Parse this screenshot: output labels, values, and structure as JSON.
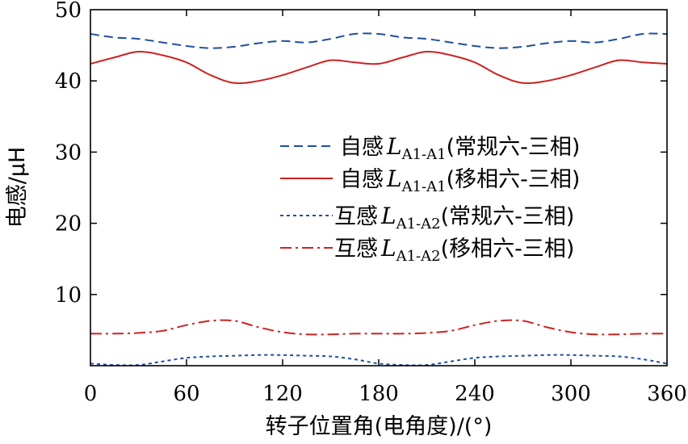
{
  "chart_data": {
    "type": "line",
    "title": "",
    "xlabel": "转子位置角(电角度)/(°)",
    "ylabel": "电感/μH",
    "xlim": [
      0,
      360
    ],
    "ylim": [
      0,
      50
    ],
    "xticks": [
      "0",
      "60",
      "120",
      "180",
      "240",
      "300",
      "360"
    ],
    "yticks": [
      "10",
      "20",
      "30",
      "40",
      "50"
    ],
    "legend_position": "center-right",
    "x": [
      0,
      15,
      30,
      45,
      60,
      75,
      90,
      105,
      120,
      135,
      150,
      165,
      180,
      195,
      210,
      225,
      240,
      255,
      270,
      285,
      300,
      315,
      330,
      345,
      360
    ],
    "series": [
      {
        "name": "自感L_A1-A1(常规六-三相)",
        "legend_prefix": "自感",
        "legend_symbol": "L",
        "legend_subscript": "A1-A1",
        "legend_suffix": "(常规六-三相)",
        "color": "#1f4e9c",
        "style": "dashed",
        "values": [
          46.6,
          46.1,
          45.9,
          45.4,
          44.9,
          44.6,
          44.8,
          45.3,
          45.6,
          45.4,
          45.9,
          46.6,
          46.6,
          46.1,
          45.9,
          45.4,
          44.9,
          44.6,
          44.8,
          45.3,
          45.6,
          45.4,
          45.9,
          46.6,
          46.6
        ]
      },
      {
        "name": "自感L_A1-A1(移相六-三相)",
        "legend_prefix": "自感",
        "legend_symbol": "L",
        "legend_subscript": "A1-A1",
        "legend_suffix": "(移相六-三相)",
        "color": "#cc2222",
        "style": "solid",
        "values": [
          42.4,
          43.3,
          44.1,
          43.6,
          42.6,
          40.8,
          39.7,
          40.0,
          40.8,
          41.9,
          42.9,
          42.6,
          42.4,
          43.3,
          44.1,
          43.6,
          42.6,
          40.8,
          39.7,
          40.0,
          40.8,
          41.9,
          42.9,
          42.6,
          42.4
        ]
      },
      {
        "name": "互感L_A1-A2(常规六-三相)",
        "legend_prefix": "互感",
        "legend_symbol": "L",
        "legend_subscript": "A1-A2",
        "legend_suffix": "(常规六-三相)",
        "color": "#1f4e9c",
        "style": "dotted",
        "values": [
          0.3,
          0.1,
          0.1,
          0.6,
          1.1,
          1.3,
          1.4,
          1.5,
          1.5,
          1.4,
          1.3,
          0.9,
          0.3,
          0.1,
          0.1,
          0.6,
          1.1,
          1.3,
          1.4,
          1.5,
          1.5,
          1.4,
          1.3,
          0.9,
          0.3
        ]
      },
      {
        "name": "互感L_A1-A2(移相六-三相)",
        "legend_prefix": "互感",
        "legend_symbol": "L",
        "legend_subscript": "A1-A2",
        "legend_suffix": "(移相六-三相)",
        "color": "#cc2222",
        "style": "dashdot",
        "values": [
          4.5,
          4.5,
          4.6,
          4.9,
          5.7,
          6.3,
          6.3,
          5.4,
          4.7,
          4.4,
          4.4,
          4.5,
          4.5,
          4.5,
          4.6,
          4.9,
          5.7,
          6.3,
          6.3,
          5.4,
          4.7,
          4.4,
          4.4,
          4.5,
          4.5
        ]
      }
    ]
  }
}
